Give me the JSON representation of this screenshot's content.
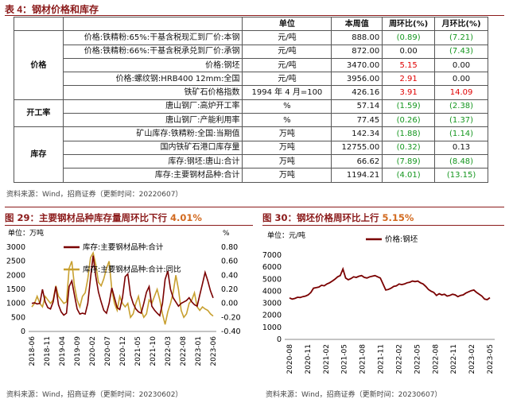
{
  "table_title": "表 4：钢材价格和库存",
  "table": {
    "headers": [
      "",
      "",
      "单位",
      "本周值",
      "周环比(%)",
      "月环比(%)"
    ],
    "groups": [
      {
        "name": "价格",
        "rows": [
          {
            "indicator": "价格:铁精粉:65%:干基含税现汇到厂价:本钢",
            "unit": "元/吨",
            "value": "888.00",
            "wow": "(0.89)",
            "mom": "(7.21)",
            "wow_dir": "down",
            "mom_dir": "down"
          },
          {
            "indicator": "价格:铁精粉:66%:干基含税承兑到厂价:承钢",
            "unit": "元/吨",
            "value": "872.00",
            "wow": "0.00",
            "mom": "(7.43)",
            "wow_dir": "",
            "mom_dir": "down"
          },
          {
            "indicator": "价格:钢坯",
            "unit": "元/吨",
            "value": "3470.00",
            "wow": "5.15",
            "mom": "0.00",
            "wow_dir": "up",
            "mom_dir": ""
          },
          {
            "indicator": "价格:螺纹钢:HRB400 12mm:全国",
            "unit": "元/吨",
            "value": "3956.00",
            "wow": "2.91",
            "mom": "0.00",
            "wow_dir": "up",
            "mom_dir": ""
          },
          {
            "indicator": "铁矿石价格指数",
            "unit": "1994 年 4 月=100",
            "value": "426.16",
            "wow": "3.91",
            "mom": "14.09",
            "wow_dir": "up",
            "mom_dir": "up"
          }
        ]
      },
      {
        "name": "开工率",
        "rows": [
          {
            "indicator": "唐山钢厂:高炉开工率",
            "unit": "%",
            "value": "57.14",
            "wow": "(1.59)",
            "mom": "(2.38)",
            "wow_dir": "down",
            "mom_dir": "down"
          },
          {
            "indicator": "唐山钢厂:产能利用率",
            "unit": "%",
            "value": "77.45",
            "wow": "(0.26)",
            "mom": "(1.37)",
            "wow_dir": "down",
            "mom_dir": "down"
          }
        ]
      },
      {
        "name": "库存",
        "rows": [
          {
            "indicator": "矿山库存:铁精粉:全国:当期值",
            "unit": "万吨",
            "value": "142.34",
            "wow": "(1.88)",
            "mom": "(1.14)",
            "wow_dir": "down",
            "mom_dir": "down"
          },
          {
            "indicator": "国内铁矿石港口库存量",
            "unit": "万吨",
            "value": "12755.00",
            "wow": "(0.32)",
            "mom": "0.13",
            "wow_dir": "down",
            "mom_dir": ""
          },
          {
            "indicator": "库存:钢坯:唐山:合计",
            "unit": "万吨",
            "value": "66.62",
            "wow": "(7.89)",
            "mom": "(8.48)",
            "wow_dir": "down",
            "mom_dir": "down"
          },
          {
            "indicator": "库存:主要钢材品种:合计",
            "unit": "万吨",
            "value": "1194.21",
            "wow": "(4.01)",
            "mom": "(13.15)",
            "wow_dir": "down",
            "mom_dir": "down"
          }
        ]
      }
    ],
    "source": "资料来源：Wind，招商证券（更新时间：20220607）"
  },
  "chart_data": [
    {
      "type": "line",
      "title_prefix": "图 29：主要钢材品种库存量周环比下行 ",
      "title_highlight": "4.01%",
      "ylabel_left": "单位：万吨",
      "ylabel_right": "%",
      "ylim_left": [
        0,
        3000
      ],
      "ylim_right": [
        -0.4,
        0.8
      ],
      "yticks_left": [
        "0",
        "500",
        "1000",
        "1500",
        "2000",
        "2500",
        "3000"
      ],
      "yticks_right": [
        "-0.40",
        "-0.20",
        "0.00",
        "0.20",
        "0.40",
        "0.60",
        "0.80"
      ],
      "x_ticks": [
        "2018-06",
        "2018-11",
        "2019-04",
        "2019-09",
        "2020-02",
        "2020-07",
        "2020-12",
        "2021-05",
        "2021-10",
        "2022-03",
        "2022-08",
        "2023-01",
        "2023-06"
      ],
      "series": [
        {
          "name": "库存:主要钢材品种:合计",
          "axis": "left",
          "color": "#7a0000",
          "values": [
            1000,
            1020,
            980,
            1000,
            1500,
            1050,
            850,
            800,
            1050,
            1600,
            950,
            700,
            580,
            650,
            1600,
            1800,
            1300,
            800,
            620,
            650,
            620,
            1000,
            1900,
            2700,
            1950,
            1400,
            1050,
            750,
            650,
            1000,
            1550,
            1200,
            850,
            780,
            1200,
            1950,
            2050,
            1300,
            1000,
            800,
            700,
            650,
            1000,
            1400,
            1600,
            900,
            760,
            650,
            560,
            1000,
            1850,
            2150,
            1500,
            1200,
            1050,
            900,
            1000,
            1050,
            1100,
            1200,
            1050,
            950,
            900,
            1300,
            1700,
            2100,
            1800,
            1450,
            1194
          ]
        },
        {
          "name": "库存:主要钢材品种:合计:同比",
          "axis": "right",
          "color": "#c8a030",
          "values": [
            -0.05,
            0.0,
            0.1,
            0.0,
            -0.05,
            0.1,
            0.05,
            0.0,
            0.05,
            0.25,
            0.1,
            0.05,
            0.0,
            0.02,
            0.5,
            0.6,
            0.25,
            0.05,
            -0.05,
            0.1,
            0.15,
            0.35,
            0.65,
            0.72,
            0.55,
            0.3,
            0.25,
            0.35,
            0.5,
            0.6,
            0.2,
            0.0,
            -0.1,
            0.1,
            0.0,
            -0.05,
            0.0,
            -0.2,
            -0.15,
            0.0,
            0.1,
            -0.1,
            -0.2,
            -0.15,
            0.05,
            0.0,
            0.1,
            0.2,
            0.05,
            -0.15,
            -0.3,
            -0.12,
            0.0,
            0.15,
            0.4,
            0.2,
            -0.1,
            -0.2,
            -0.15,
            0.0,
            0.05,
            0.15,
            -0.05,
            -0.1,
            -0.05,
            -0.08,
            -0.1,
            -0.15,
            -0.18
          ]
        }
      ],
      "source": "资料来源：Wind，招商证券（更新时间：20230602）"
    },
    {
      "type": "line",
      "title_prefix": "图 30：钢坯价格周环比上行 ",
      "title_highlight": "5.15%",
      "ylabel": "单位：元/吨",
      "ylim": [
        0,
        7000
      ],
      "yticks": [
        "0",
        "1000",
        "2000",
        "3000",
        "4000",
        "5000",
        "6000",
        "7000"
      ],
      "x_ticks": [
        "2020-08",
        "2020-11",
        "2021-02",
        "2021-05",
        "2021-08",
        "2021-11",
        "2022-02",
        "2022-05",
        "2022-08",
        "2022-11",
        "2023-02",
        "2023-05"
      ],
      "series": [
        {
          "name": "价格:钢坯",
          "color": "#7a0000",
          "values": [
            3450,
            3350,
            3400,
            3500,
            3480,
            3550,
            3600,
            3700,
            3900,
            4250,
            4300,
            4350,
            4500,
            4450,
            4600,
            4700,
            4850,
            5000,
            5200,
            5300,
            5850,
            5100,
            4950,
            5050,
            5200,
            5150,
            5250,
            5300,
            5150,
            5100,
            5200,
            5250,
            5300,
            5200,
            5100,
            4600,
            4100,
            4150,
            4250,
            4400,
            4450,
            4600,
            4550,
            4600,
            4700,
            4750,
            4850,
            4800,
            4850,
            4700,
            4600,
            4400,
            4150,
            4000,
            3900,
            3650,
            3800,
            3700,
            3750,
            3600,
            3650,
            3750,
            3700,
            3550,
            3650,
            3700,
            3850,
            3950,
            4050,
            4100,
            3900,
            3750,
            3600,
            3350,
            3300,
            3470
          ]
        }
      ],
      "source": "资料来源：Wind，招商证券（更新时间：20230607）"
    }
  ]
}
